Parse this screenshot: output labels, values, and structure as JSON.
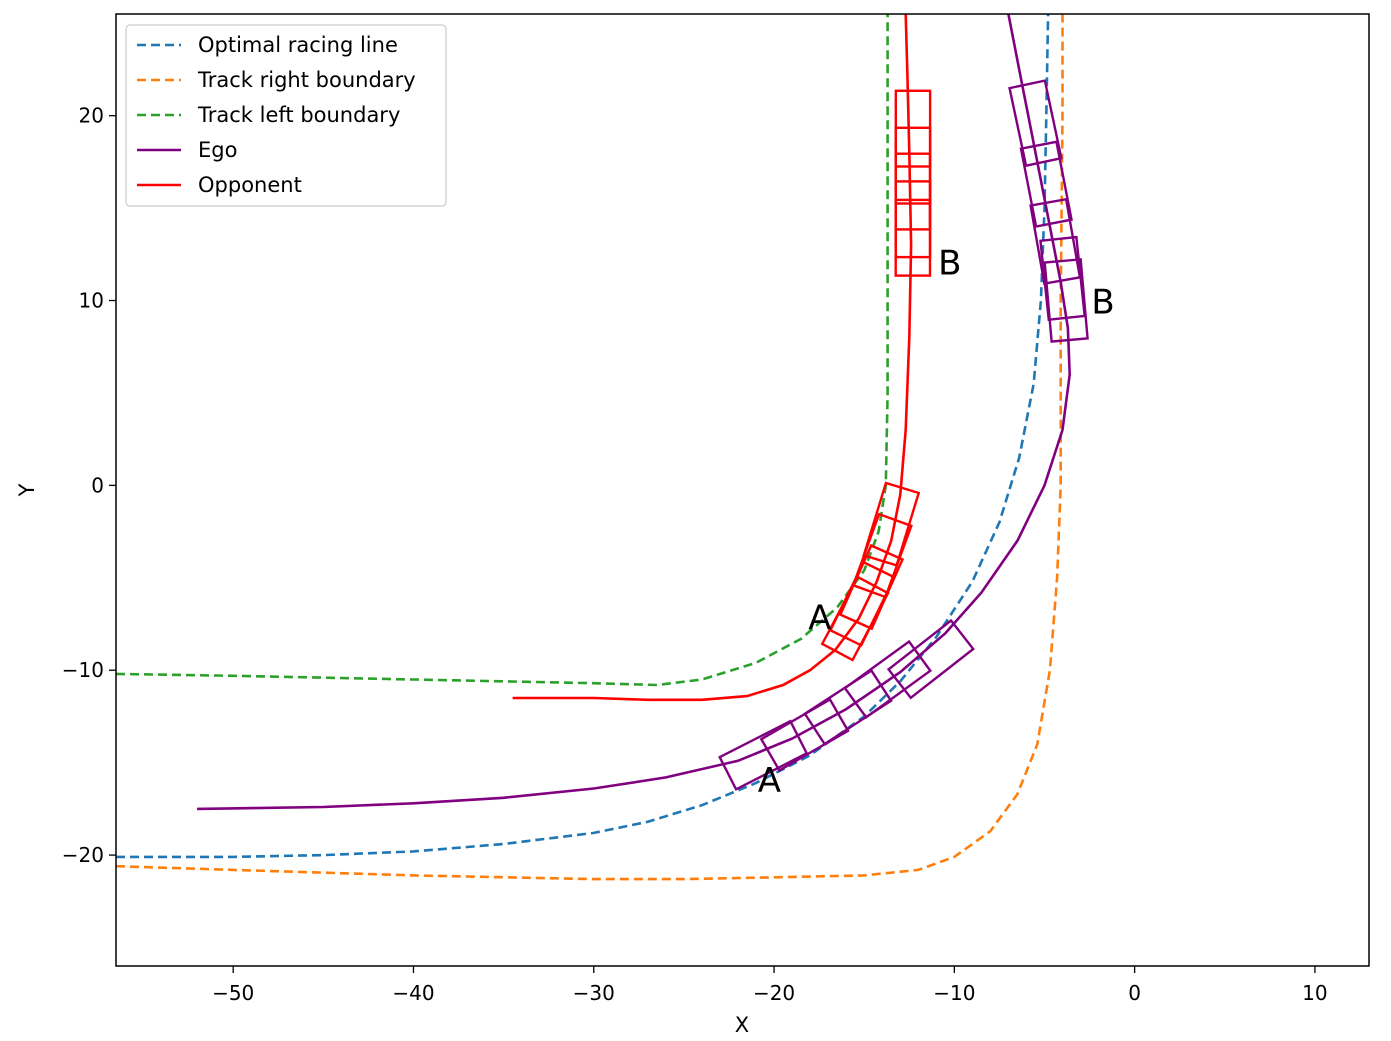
{
  "chart_data": {
    "type": "line",
    "title": "",
    "xlabel": "X",
    "ylabel": "Y",
    "xlim": [
      -56.5,
      13
    ],
    "ylim": [
      -26,
      25.5
    ],
    "xticks": [
      -50,
      -40,
      -30,
      -20,
      -10,
      0,
      10
    ],
    "yticks": [
      -20,
      -10,
      0,
      10,
      20
    ],
    "grid": false,
    "legend_position": "top-left",
    "series": [
      {
        "name": "Optimal racing line",
        "color": "#1f77b4",
        "style": "dashed",
        "points": [
          [
            -56.5,
            -20.1
          ],
          [
            -50,
            -20.1
          ],
          [
            -45,
            -20.0
          ],
          [
            -40,
            -19.8
          ],
          [
            -35,
            -19.4
          ],
          [
            -30,
            -18.8
          ],
          [
            -27,
            -18.2
          ],
          [
            -24,
            -17.3
          ],
          [
            -21,
            -16.1
          ],
          [
            -18,
            -14.6
          ],
          [
            -15,
            -12.5
          ],
          [
            -13,
            -10.6
          ],
          [
            -11,
            -8.2
          ],
          [
            -9,
            -5.2
          ],
          [
            -7.5,
            -2
          ],
          [
            -6.4,
            1.5
          ],
          [
            -5.6,
            5.5
          ],
          [
            -5.2,
            10
          ],
          [
            -5,
            15
          ],
          [
            -4.9,
            20
          ],
          [
            -4.8,
            25.5
          ]
        ]
      },
      {
        "name": "Track right boundary",
        "color": "#ff7f0e",
        "style": "dashed",
        "points": [
          [
            -56.5,
            -20.6
          ],
          [
            -50,
            -20.8
          ],
          [
            -40,
            -21.1
          ],
          [
            -30,
            -21.3
          ],
          [
            -25,
            -21.3
          ],
          [
            -20,
            -21.2
          ],
          [
            -15,
            -21.1
          ],
          [
            -12,
            -20.8
          ],
          [
            -10,
            -20.1
          ],
          [
            -8,
            -18.7
          ],
          [
            -6.5,
            -16.7
          ],
          [
            -5.4,
            -14
          ],
          [
            -4.7,
            -10
          ],
          [
            -4.3,
            -5
          ],
          [
            -4.1,
            0
          ],
          [
            -4.1,
            5
          ],
          [
            -4.1,
            10
          ],
          [
            -4.0,
            20
          ],
          [
            -4.0,
            25.5
          ]
        ]
      },
      {
        "name": "Track left boundary",
        "color": "#2ca02c",
        "style": "dashed",
        "points": [
          [
            -56.5,
            -10.2
          ],
          [
            -50,
            -10.3
          ],
          [
            -40,
            -10.5
          ],
          [
            -30,
            -10.7
          ],
          [
            -26.5,
            -10.8
          ],
          [
            -24,
            -10.5
          ],
          [
            -21,
            -9.6
          ],
          [
            -18.5,
            -8.3
          ],
          [
            -16.5,
            -6.6
          ],
          [
            -15,
            -4.6
          ],
          [
            -14.2,
            -2.5
          ],
          [
            -13.8,
            0
          ],
          [
            -13.7,
            5
          ],
          [
            -13.7,
            10
          ],
          [
            -13.7,
            20
          ],
          [
            -13.7,
            25.5
          ]
        ]
      },
      {
        "name": "Ego",
        "color": "#800080",
        "style": "solid",
        "points": [
          [
            -52,
            -17.5
          ],
          [
            -45,
            -17.4
          ],
          [
            -40,
            -17.2
          ],
          [
            -35,
            -16.9
          ],
          [
            -30,
            -16.4
          ],
          [
            -26,
            -15.8
          ],
          [
            -22,
            -14.9
          ],
          [
            -19,
            -13.7
          ],
          [
            -16,
            -12.1
          ],
          [
            -13,
            -10.1
          ],
          [
            -10.5,
            -8
          ],
          [
            -8.5,
            -5.8
          ],
          [
            -6.5,
            -3
          ],
          [
            -5,
            0
          ],
          [
            -4.0,
            3
          ],
          [
            -3.6,
            6
          ],
          [
            -3.7,
            8.5
          ],
          [
            -4.1,
            11
          ],
          [
            -4.6,
            13.5
          ],
          [
            -5.1,
            16
          ],
          [
            -5.7,
            19
          ],
          [
            -6.3,
            22
          ],
          [
            -7.0,
            25.5
          ]
        ]
      },
      {
        "name": "Opponent",
        "color": "#ff0000",
        "style": "solid",
        "points": [
          [
            -34.5,
            -11.5
          ],
          [
            -30,
            -11.5
          ],
          [
            -27,
            -11.6
          ],
          [
            -24,
            -11.6
          ],
          [
            -21.5,
            -11.4
          ],
          [
            -19.5,
            -10.8
          ],
          [
            -18,
            -10
          ],
          [
            -16.6,
            -8.9
          ],
          [
            -15.3,
            -7.2
          ],
          [
            -14.3,
            -5.2
          ],
          [
            -13.5,
            -3
          ],
          [
            -13,
            -0.5
          ],
          [
            -12.7,
            3
          ],
          [
            -12.5,
            8
          ],
          [
            -12.4,
            13
          ],
          [
            -12.5,
            18
          ],
          [
            -12.6,
            22
          ],
          [
            -12.7,
            25.5
          ]
        ]
      }
    ],
    "vehicle_footprints": [
      {
        "color": "#ff0000",
        "length": 4.2,
        "width": 1.9,
        "poses": [
          [
            -12.3,
            19.3,
            90
          ],
          [
            -12.3,
            17.3,
            90
          ],
          [
            -12.3,
            15.9,
            90
          ],
          [
            -12.3,
            14.4,
            90
          ],
          [
            -12.3,
            13.4,
            90
          ]
        ]
      },
      {
        "color": "#ff0000",
        "length": 4.2,
        "width": 1.9,
        "poses": [
          [
            -13.5,
            -2.1,
            73
          ],
          [
            -14.0,
            -3.8,
            70
          ],
          [
            -14.6,
            -5.5,
            66
          ],
          [
            -15.1,
            -6.4,
            64
          ],
          [
            -15.5,
            -7.2,
            62
          ]
        ]
      },
      {
        "color": "#800080",
        "length": 4.4,
        "width": 2.0,
        "poses": [
          [
            -5.5,
            19.6,
            102
          ],
          [
            -4.9,
            16.3,
            101
          ],
          [
            -4.4,
            13.2,
            100
          ],
          [
            -4.0,
            11.2,
            96
          ],
          [
            -3.8,
            10.0,
            95
          ]
        ]
      },
      {
        "color": "#800080",
        "length": 4.4,
        "width": 2.0,
        "poses": [
          [
            -20.6,
            -14.6,
            27
          ],
          [
            -18.3,
            -13.5,
            30
          ],
          [
            -15.9,
            -12.0,
            33
          ],
          [
            -13.7,
            -10.5,
            36
          ],
          [
            -11.3,
            -9.4,
            38
          ]
        ]
      }
    ],
    "annotations": [
      {
        "text": "B",
        "x": -10.9,
        "y": 11.4
      },
      {
        "text": "B",
        "x": -2.4,
        "y": 9.3
      },
      {
        "text": "A",
        "x": -18.1,
        "y": -7.8
      },
      {
        "text": "A",
        "x": -20.9,
        "y": -16.6
      }
    ]
  }
}
